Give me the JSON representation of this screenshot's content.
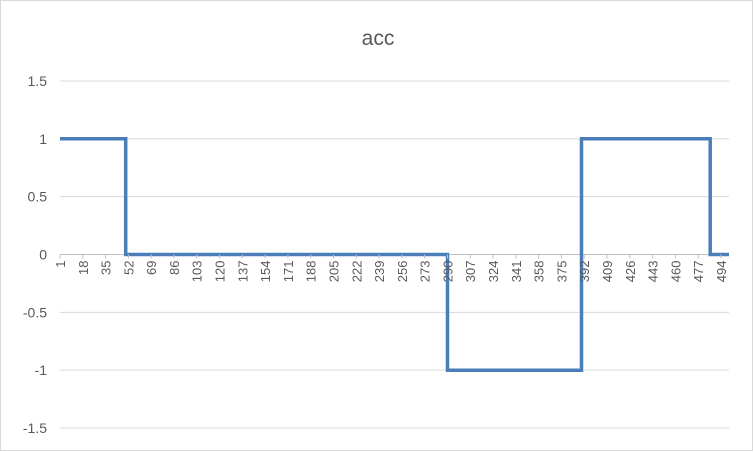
{
  "chart_data": {
    "type": "line",
    "title": "acc",
    "xlabel": "",
    "ylabel": "",
    "ylim": [
      -1.5,
      1.5
    ],
    "yticks": [
      "1.5",
      "1",
      "0.5",
      "0",
      "-0.5",
      "-1",
      "-1.5"
    ],
    "xlim": [
      1,
      500
    ],
    "xticks": [
      "1",
      "18",
      "35",
      "52",
      "69",
      "86",
      "103",
      "120",
      "137",
      "154",
      "171",
      "188",
      "205",
      "222",
      "239",
      "256",
      "273",
      "290",
      "307",
      "324",
      "341",
      "358",
      "375",
      "392",
      "409",
      "426",
      "443",
      "460",
      "477",
      "494"
    ],
    "grid": true,
    "legend": "none",
    "series_color": "#4a7ebb",
    "series": [
      {
        "x": [
          1,
          50,
          50,
          290,
          290,
          390,
          390,
          486,
          486,
          500
        ],
        "y": [
          1,
          1,
          0,
          0,
          -1,
          -1,
          1,
          1,
          0,
          0
        ]
      }
    ]
  }
}
